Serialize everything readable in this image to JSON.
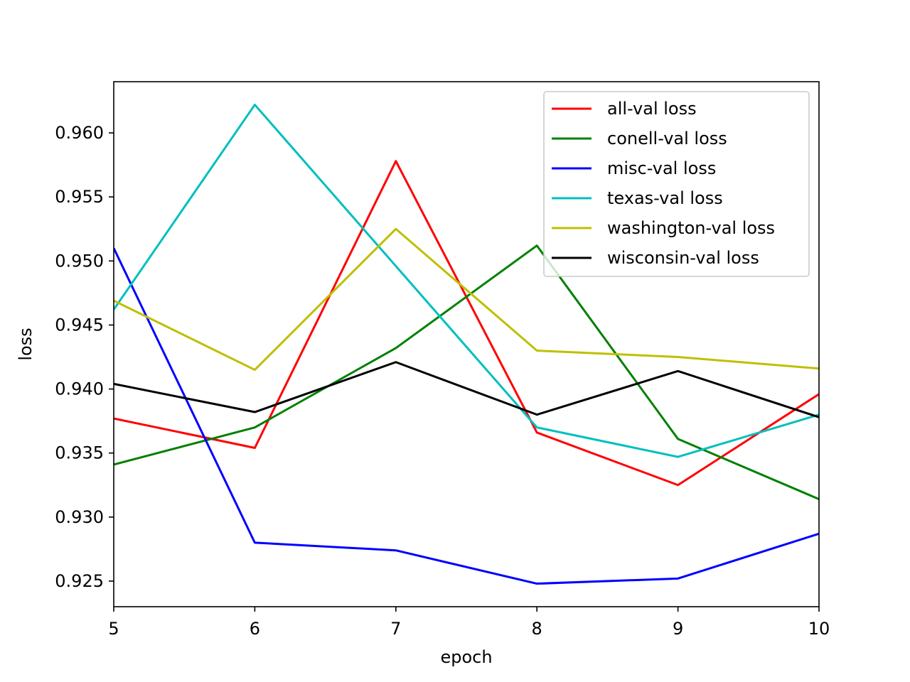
{
  "chart_data": {
    "type": "line",
    "xlabel": "epoch",
    "ylabel": "loss",
    "xlim": [
      5,
      10
    ],
    "ylim": [
      0.923,
      0.964
    ],
    "xticks": [
      "5",
      "6",
      "7",
      "8",
      "9",
      "10"
    ],
    "yticks": [
      "0.925",
      "0.930",
      "0.935",
      "0.940",
      "0.945",
      "0.950",
      "0.955",
      "0.960"
    ],
    "x": [
      5,
      6,
      7,
      8,
      9,
      10
    ],
    "grid": false,
    "legend_position": "top-right",
    "series": [
      {
        "name": "all-val loss",
        "color": "#ff0000",
        "values": [
          0.9377,
          0.9354,
          0.9578,
          0.9366,
          0.9325,
          0.9396
        ]
      },
      {
        "name": "conell-val loss",
        "color": "#008000",
        "values": [
          0.9341,
          0.937,
          0.9432,
          0.9512,
          0.9361,
          0.9314
        ]
      },
      {
        "name": "misc-val loss",
        "color": "#0000ff",
        "values": [
          0.951,
          0.928,
          0.9274,
          0.9248,
          0.9252,
          0.9287
        ]
      },
      {
        "name": "texas-val loss",
        "color": "#00bfbf",
        "values": [
          0.9462,
          0.9622,
          0.9496,
          0.937,
          0.9347,
          0.938
        ]
      },
      {
        "name": "washington-val loss",
        "color": "#bfbf00",
        "values": [
          0.9469,
          0.9415,
          0.9525,
          0.943,
          0.9425,
          0.9416
        ]
      },
      {
        "name": "wisconsin-val loss",
        "color": "#000000",
        "values": [
          0.9404,
          0.9382,
          0.9421,
          0.938,
          0.9414,
          0.9378
        ]
      }
    ]
  }
}
